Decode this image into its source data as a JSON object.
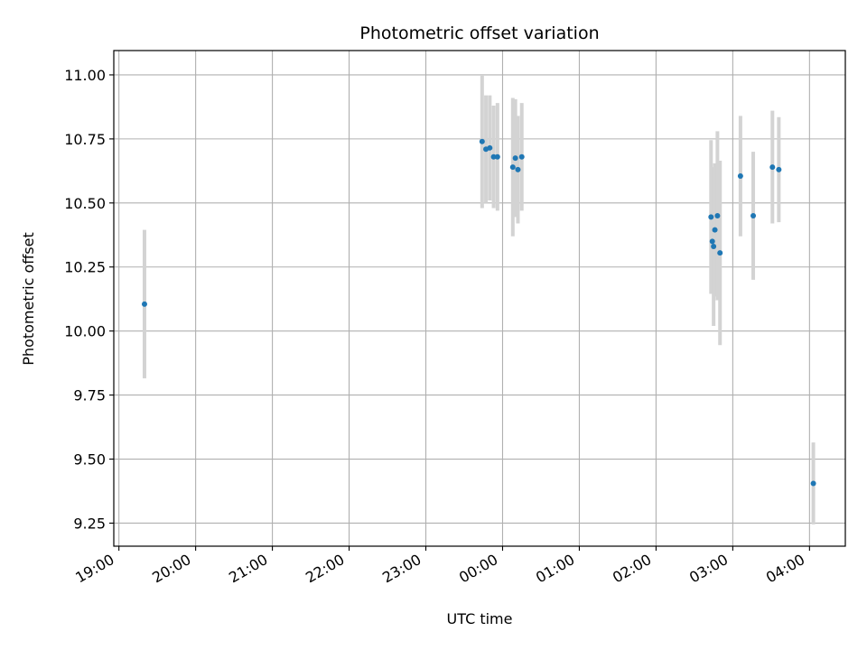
{
  "chart_data": {
    "type": "scatter",
    "title": "Photometric offset variation",
    "xlabel": "UTC time",
    "ylabel": "Photometric offset",
    "x_tick_labels": [
      "19:00",
      "20:00",
      "21:00",
      "22:00",
      "23:00",
      "00:00",
      "01:00",
      "02:00",
      "03:00",
      "04:00"
    ],
    "y_tick_labels": [
      "9.25",
      "9.50",
      "9.75",
      "10.00",
      "10.25",
      "10.50",
      "10.75",
      "11.00"
    ],
    "xlim": [
      "18:56",
      "04:28"
    ],
    "ylim": [
      9.16,
      11.095
    ],
    "grid": true,
    "marker_color": "#1f77b4",
    "errorbar_color": "#d3d3d3",
    "points": [
      {
        "x": "19:20",
        "y": 10.105,
        "err": 0.29
      },
      {
        "x": "23:44",
        "y": 10.74,
        "err": 0.26
      },
      {
        "x": "23:47",
        "y": 10.71,
        "err": 0.21
      },
      {
        "x": "23:50",
        "y": 10.715,
        "err": 0.205
      },
      {
        "x": "23:53",
        "y": 10.68,
        "err": 0.2
      },
      {
        "x": "23:56",
        "y": 10.68,
        "err": 0.21
      },
      {
        "x": "00:08",
        "y": 10.64,
        "err": 0.27
      },
      {
        "x": "00:10",
        "y": 10.675,
        "err": 0.23
      },
      {
        "x": "00:12",
        "y": 10.63,
        "err": 0.21
      },
      {
        "x": "00:15",
        "y": 10.68,
        "err": 0.21
      },
      {
        "x": "02:43",
        "y": 10.445,
        "err": 0.3
      },
      {
        "x": "02:44",
        "y": 10.35,
        "err": 0.2
      },
      {
        "x": "02:45",
        "y": 10.33,
        "err": 0.31
      },
      {
        "x": "02:46",
        "y": 10.395,
        "err": 0.26
      },
      {
        "x": "02:48",
        "y": 10.45,
        "err": 0.33
      },
      {
        "x": "02:50",
        "y": 10.305,
        "err": 0.36
      },
      {
        "x": "03:06",
        "y": 10.605,
        "err": 0.235
      },
      {
        "x": "03:16",
        "y": 10.45,
        "err": 0.25
      },
      {
        "x": "03:31",
        "y": 10.64,
        "err": 0.22
      },
      {
        "x": "03:36",
        "y": 10.63,
        "err": 0.205
      },
      {
        "x": "04:03",
        "y": 9.405,
        "err": 0.16
      }
    ]
  }
}
